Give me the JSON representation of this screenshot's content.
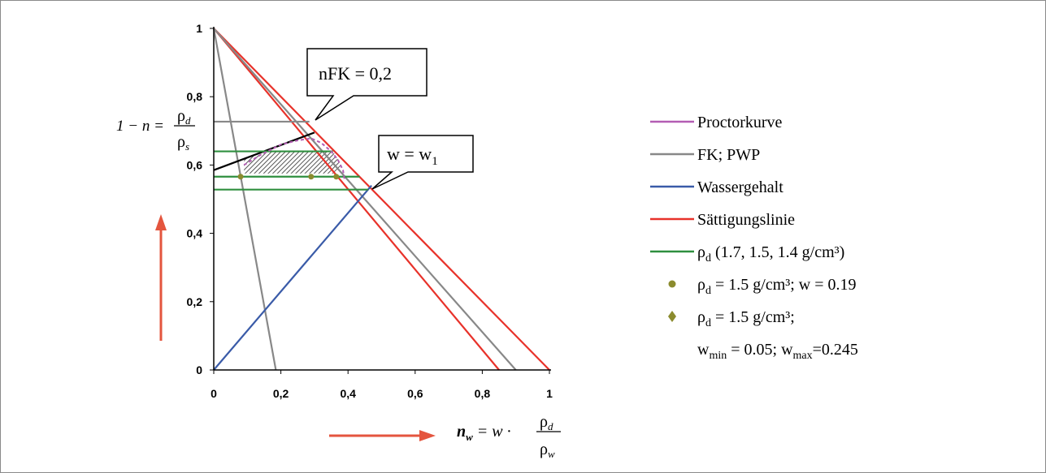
{
  "chart_data": {
    "type": "line",
    "xlim": [
      0,
      1
    ],
    "ylim": [
      0,
      1
    ],
    "x_ticks": [
      "0",
      "0,2",
      "0,4",
      "0,6",
      "0,8",
      "1"
    ],
    "y_ticks": [
      "0",
      "0,2",
      "0,4",
      "0,6",
      "0,8",
      "1"
    ],
    "grid": false,
    "legend_position": "right",
    "y_formula": {
      "lhs": "1 − n =",
      "num": "ρ",
      "num_sub": "d",
      "den": "ρ",
      "den_sub": "s"
    },
    "x_formula": {
      "lhs": "n",
      "lhs_sub": "w",
      "mid": "= w ·",
      "num": "ρ",
      "num_sub": "d",
      "den": "ρ",
      "den_sub": "w"
    },
    "callouts": [
      {
        "text": "nFK =  0,2"
      },
      {
        "text": "w = w",
        "sub": "1"
      }
    ],
    "legend": [
      {
        "label": "Proctorkurve",
        "color": "#b35db3",
        "marker": "line"
      },
      {
        "label": "FK; PWP",
        "color": "#888888",
        "marker": "line"
      },
      {
        "label": "Wassergehalt",
        "color": "#3a5ba8",
        "marker": "line"
      },
      {
        "label": "Sättigungslinie",
        "color": "#e8322a",
        "marker": "line"
      },
      {
        "label_pre": "ρ",
        "label_sub": "d",
        "label_post": " (1.7, 1.5, 1.4 g/cm³)",
        "color": "#2f8f3f",
        "marker": "line"
      },
      {
        "label_pre": "ρ",
        "label_sub": "d",
        "label_post": " = 1.5 g/cm³; w = 0.19",
        "color": "#8b8b2e",
        "marker": "circle"
      },
      {
        "label_pre": "ρ",
        "label_sub": "d",
        "label_post": " = 1.5 g/cm³;",
        "color": "#8b8b2e",
        "marker": "diamond"
      }
    ],
    "legend_extra": {
      "w": "w",
      "min_sub": "min",
      "mid": " = 0.05; w",
      "max_sub": "max",
      "tail": "=0.245"
    },
    "series": [
      {
        "name": "Sättigungslinie",
        "color": "#e8322a",
        "points": [
          [
            0,
            1
          ],
          [
            1,
            0
          ]
        ]
      },
      {
        "name": "Sättigungslinie",
        "color": "#e8322a",
        "points": [
          [
            0,
            1
          ],
          [
            0.85,
            0
          ]
        ]
      },
      {
        "name": "FK; PWP",
        "color": "#888888",
        "points": [
          [
            0,
            1
          ],
          [
            0.9,
            0
          ]
        ]
      },
      {
        "name": "FK; PWP",
        "color": "#888888",
        "points": [
          [
            0,
            1
          ],
          [
            0.185,
            0
          ]
        ]
      },
      {
        "name": "FK; PWP",
        "color": "#888888",
        "points": [
          [
            0,
            0.727
          ],
          [
            0.285,
            0.727
          ]
        ]
      },
      {
        "name": "Wassergehalt",
        "color": "#3a5ba8",
        "points": [
          [
            0,
            0
          ],
          [
            0.47,
            0.54
          ]
        ]
      },
      {
        "name": "nFK",
        "color": "#000000",
        "points": [
          [
            0,
            0.585
          ],
          [
            0.3,
            0.695
          ]
        ]
      },
      {
        "name": "ρd",
        "color": "#2f8f3f",
        "points": [
          [
            0,
            0.64
          ],
          [
            0.355,
            0.64
          ]
        ]
      },
      {
        "name": "ρd",
        "color": "#2f8f3f",
        "points": [
          [
            0,
            0.566
          ],
          [
            0.435,
            0.566
          ]
        ]
      },
      {
        "name": "ρd",
        "color": "#2f8f3f",
        "points": [
          [
            0,
            0.528
          ],
          [
            0.46,
            0.528
          ]
        ]
      },
      {
        "name": "Proctorkurve",
        "color": "#b35db3",
        "dashed": true,
        "points": [
          [
            0.09,
            0.6
          ],
          [
            0.14,
            0.63
          ],
          [
            0.2,
            0.66
          ],
          [
            0.25,
            0.672
          ],
          [
            0.29,
            0.678
          ],
          [
            0.32,
            0.665
          ],
          [
            0.35,
            0.64
          ],
          [
            0.37,
            0.615
          ],
          [
            0.385,
            0.585
          ],
          [
            0.39,
            0.555
          ]
        ]
      }
    ],
    "dots": [
      [
        0.08,
        0.566
      ],
      [
        0.29,
        0.566
      ],
      [
        0.365,
        0.566
      ]
    ],
    "hatched_region": [
      [
        0.09,
        0.618
      ],
      [
        0.17,
        0.64
      ],
      [
        0.355,
        0.64
      ],
      [
        0.38,
        0.6
      ],
      [
        0.365,
        0.575
      ],
      [
        0.09,
        0.575
      ]
    ]
  }
}
